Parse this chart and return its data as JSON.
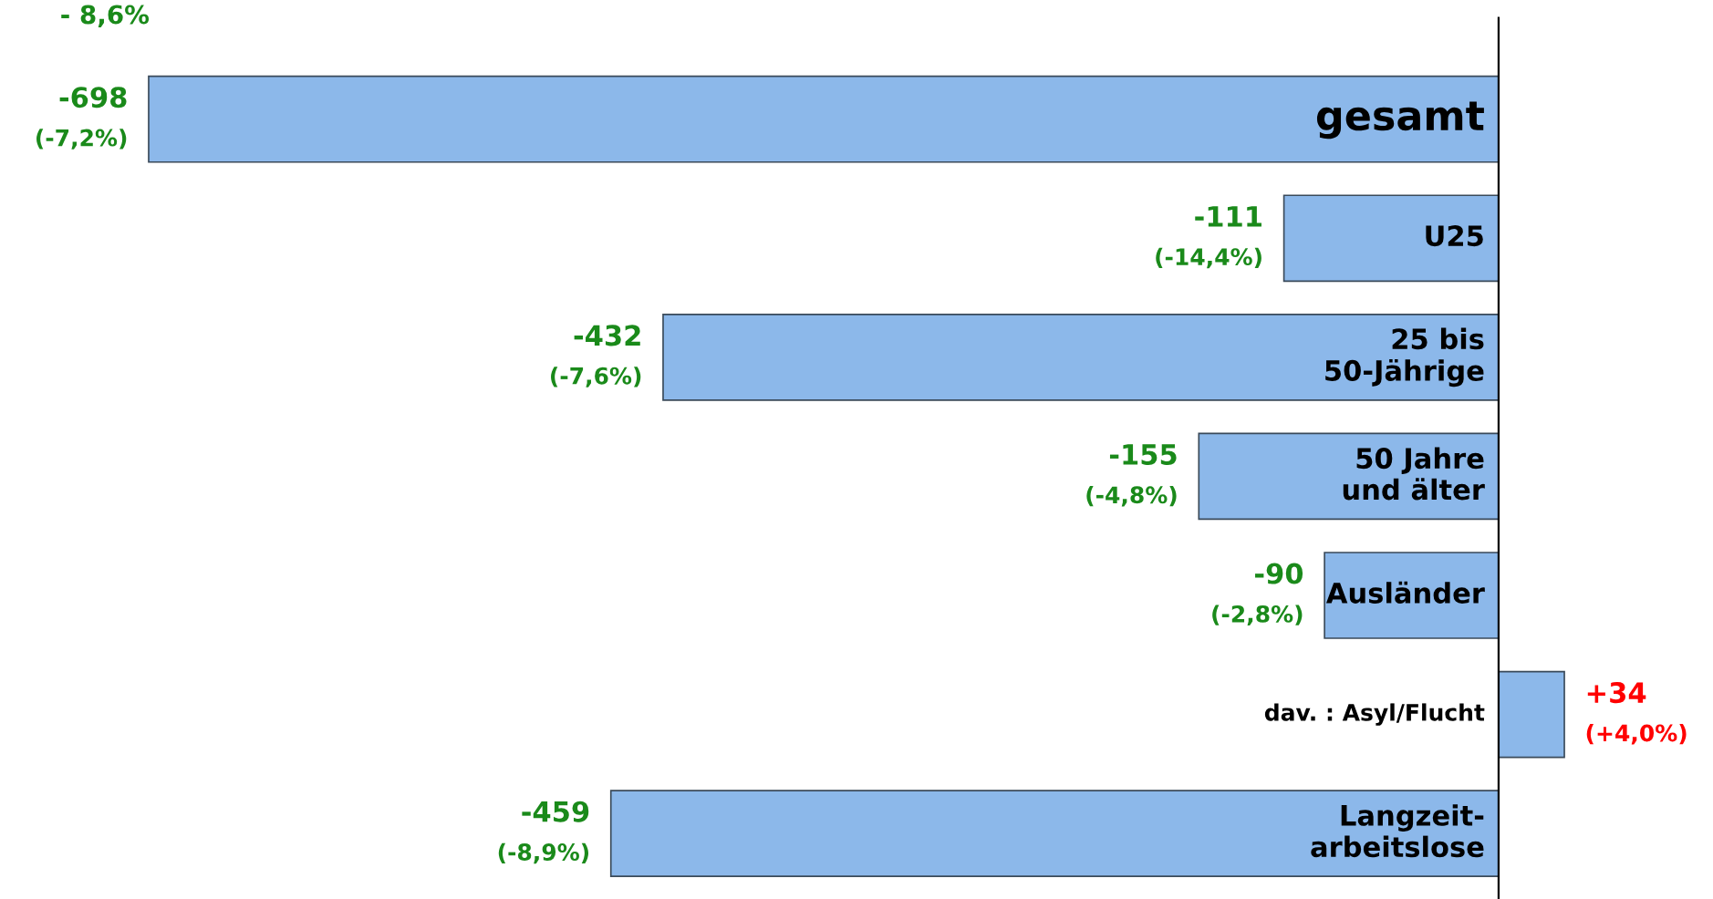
{
  "chart_data": {
    "type": "bar",
    "orientation": "horizontal",
    "categories": [
      "gesamt",
      "U25",
      "25 bis\n50-Jährige",
      "50 Jahre\nund älter",
      "Ausländer",
      "dav. : Asyl/Flucht",
      "Langzeit-\narbeitslose"
    ],
    "values": [
      -698,
      -111,
      -432,
      -155,
      -90,
      34,
      -459
    ],
    "value_labels": [
      "-698\n(-7,2%)",
      "-111\n(-14,4%)",
      "-432\n(-7,6%)",
      "-155\n(-4,8%)",
      "-90\n(-2,8%)",
      "+34\n(+4,0%)",
      "-459\n(-8,9%)"
    ],
    "color": "#8cb8ea",
    "annotations": [
      "- 8,6%"
    ]
  }
}
